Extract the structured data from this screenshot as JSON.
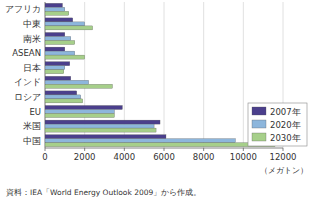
{
  "chart_data": {
    "type": "bar",
    "orientation": "horizontal",
    "categories": [
      "アフリカ",
      "中東",
      "南米",
      "ASEAN",
      "日本",
      "インド",
      "ロシア",
      "EU",
      "米国",
      "中国"
    ],
    "series": [
      {
        "name": "2007年",
        "color": "#4b3f8c",
        "values": [
          880,
          1400,
          1000,
          1000,
          1250,
          1300,
          1600,
          3900,
          5800,
          6100
        ]
      },
      {
        "name": "2020年",
        "color": "#8db6dc",
        "values": [
          1000,
          2000,
          1300,
          1500,
          1000,
          2200,
          1800,
          3500,
          5500,
          9600
        ]
      },
      {
        "name": "2030年",
        "color": "#a6cf8a",
        "values": [
          1200,
          2400,
          1500,
          2000,
          950,
          3400,
          1900,
          3500,
          5600,
          11600
        ]
      }
    ],
    "xlim": [
      0,
      12000
    ],
    "xticks": [
      0,
      2000,
      4000,
      6000,
      8000,
      10000,
      12000
    ],
    "xlabel": "（メガトン）",
    "grid": true,
    "legend": "right",
    "source": "資料：IEA「World Energy Outlook 2009」から作成。"
  }
}
